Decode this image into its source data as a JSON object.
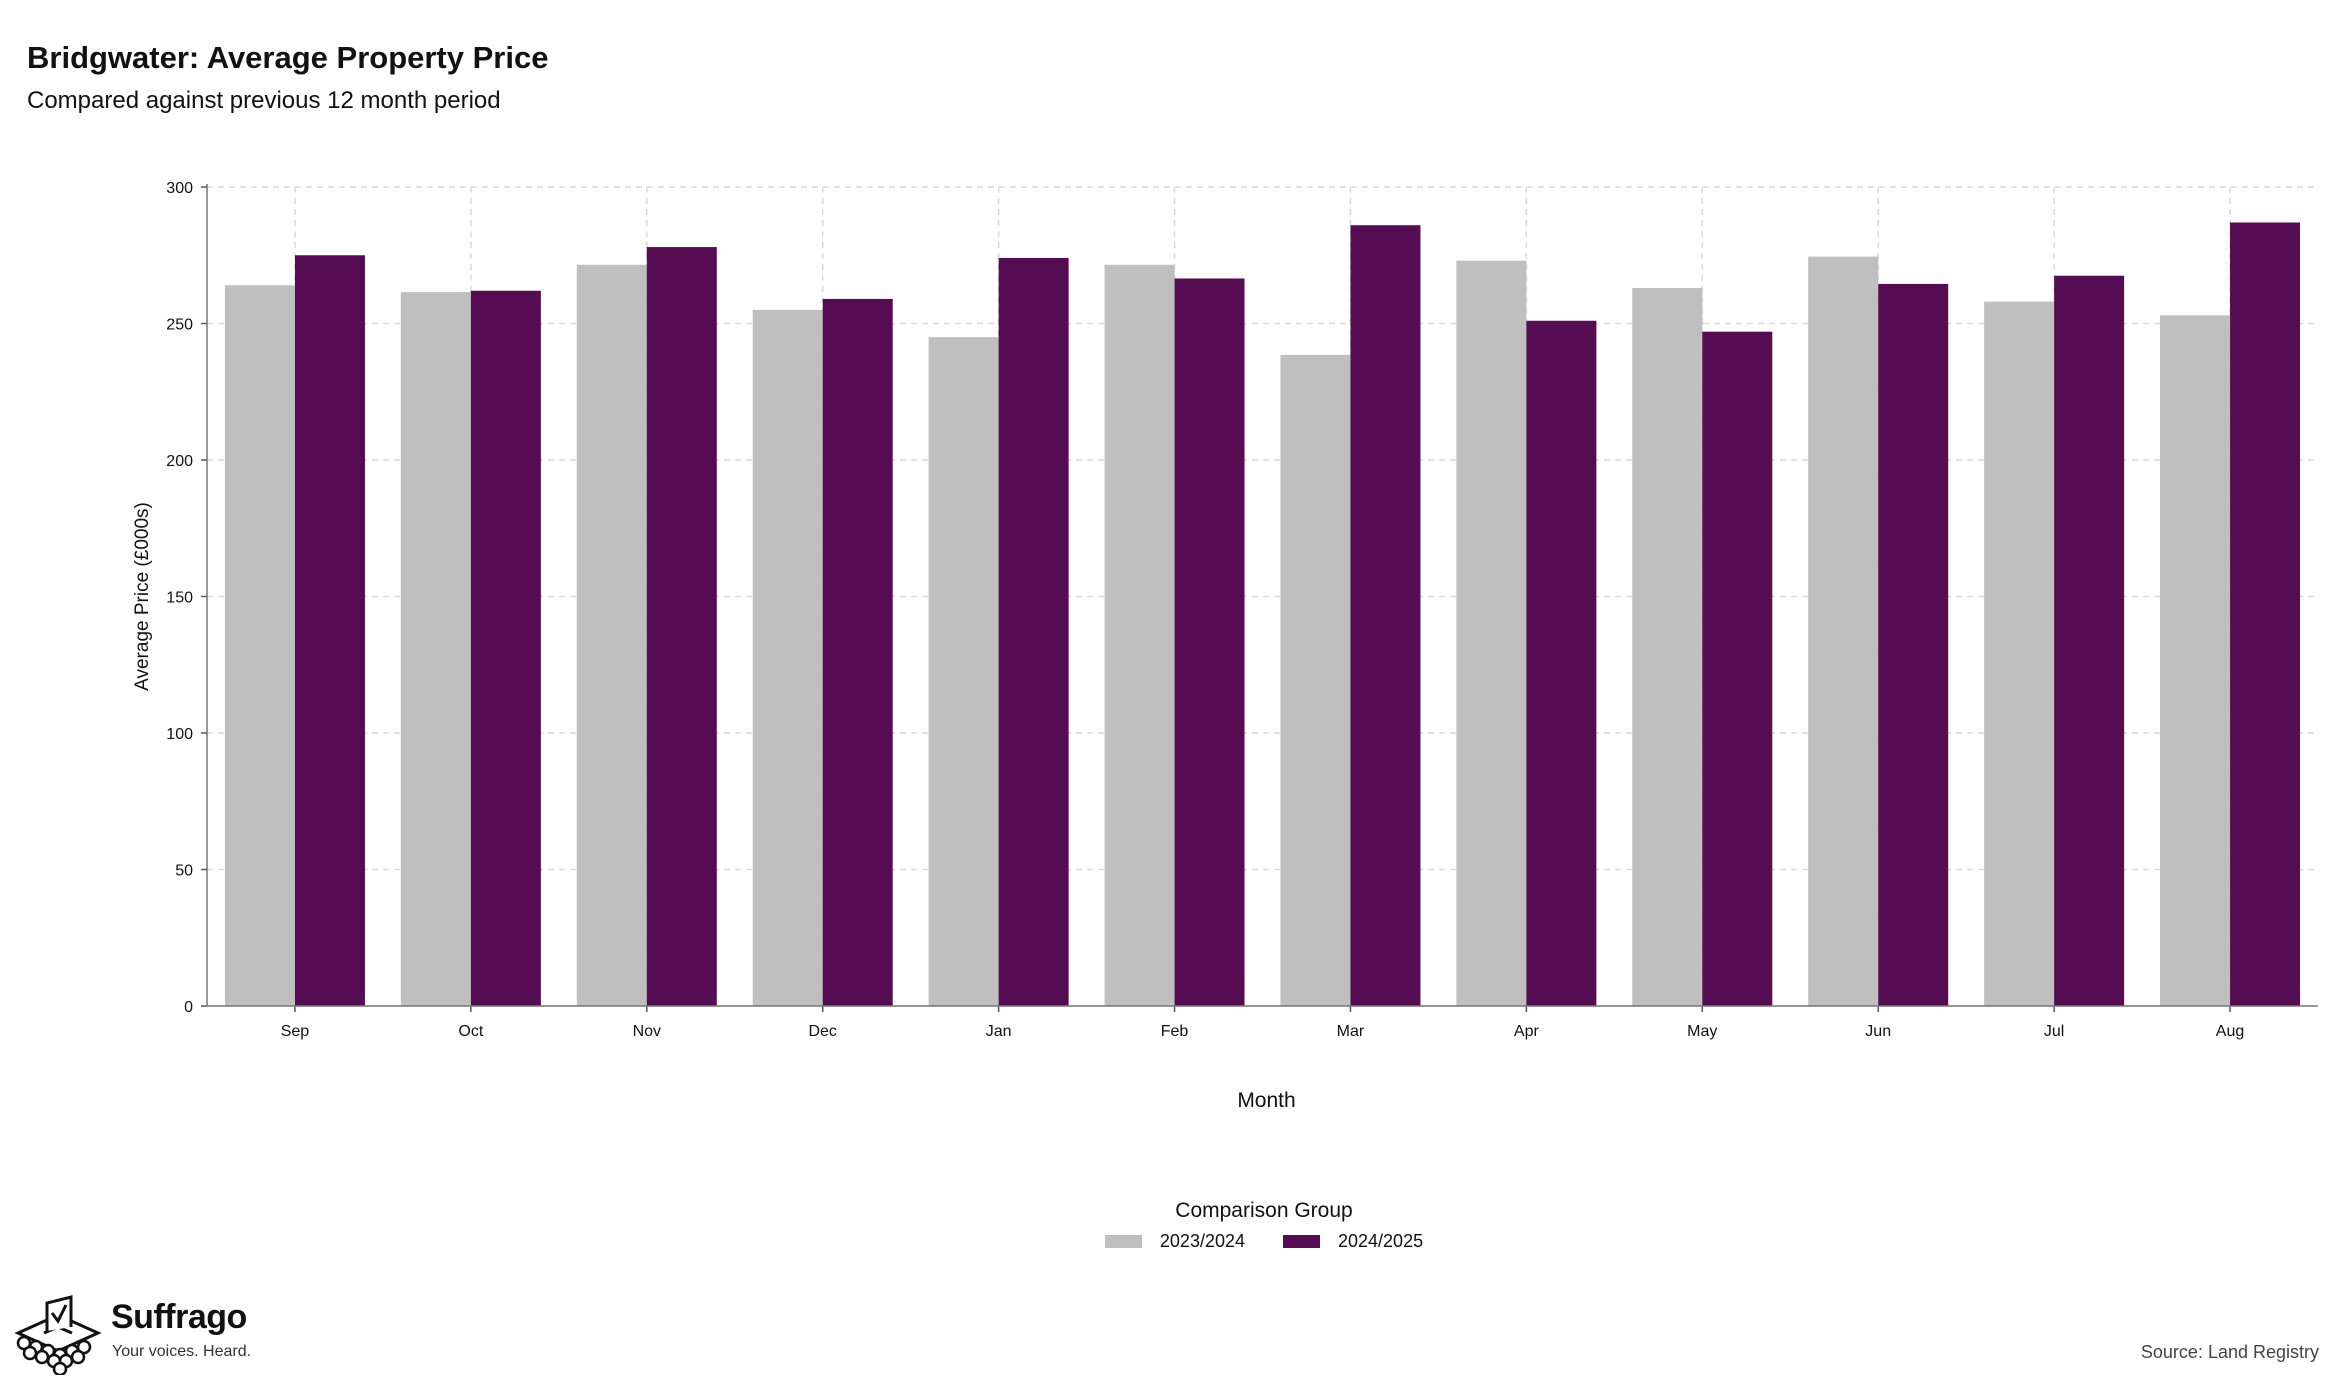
{
  "chart_data": {
    "type": "bar",
    "title": "Bridgwater: Average Property Price",
    "subtitle": "Compared against previous 12 month period",
    "xlabel": "Month",
    "ylabel": "Average Price (£000s)",
    "categories": [
      "Sep",
      "Oct",
      "Nov",
      "Dec",
      "Jan",
      "Feb",
      "Mar",
      "Apr",
      "May",
      "Jun",
      "Jul",
      "Aug"
    ],
    "series": [
      {
        "name": "2023/2024",
        "color": "#bfbfbf",
        "values": [
          264,
          261.5,
          271.5,
          255,
          245,
          271.5,
          238.5,
          273,
          263,
          274.5,
          258,
          253
        ]
      },
      {
        "name": "2024/2025",
        "color": "#560c53",
        "values": [
          275,
          262,
          278,
          259,
          274,
          266.5,
          286,
          251,
          247,
          264.5,
          267.5,
          287
        ]
      }
    ],
    "ylim": [
      0,
      300
    ],
    "yticks": [
      0,
      50,
      100,
      150,
      200,
      250,
      300
    ],
    "grid": true,
    "legend_title": "Comparison Group",
    "legend_position": "bottom"
  },
  "branding": {
    "logo_name": "Suffrago",
    "logo_tagline": "Your voices. Heard.",
    "logo_icon": "ballot-box-icon"
  },
  "source": "Source: Land Registry"
}
